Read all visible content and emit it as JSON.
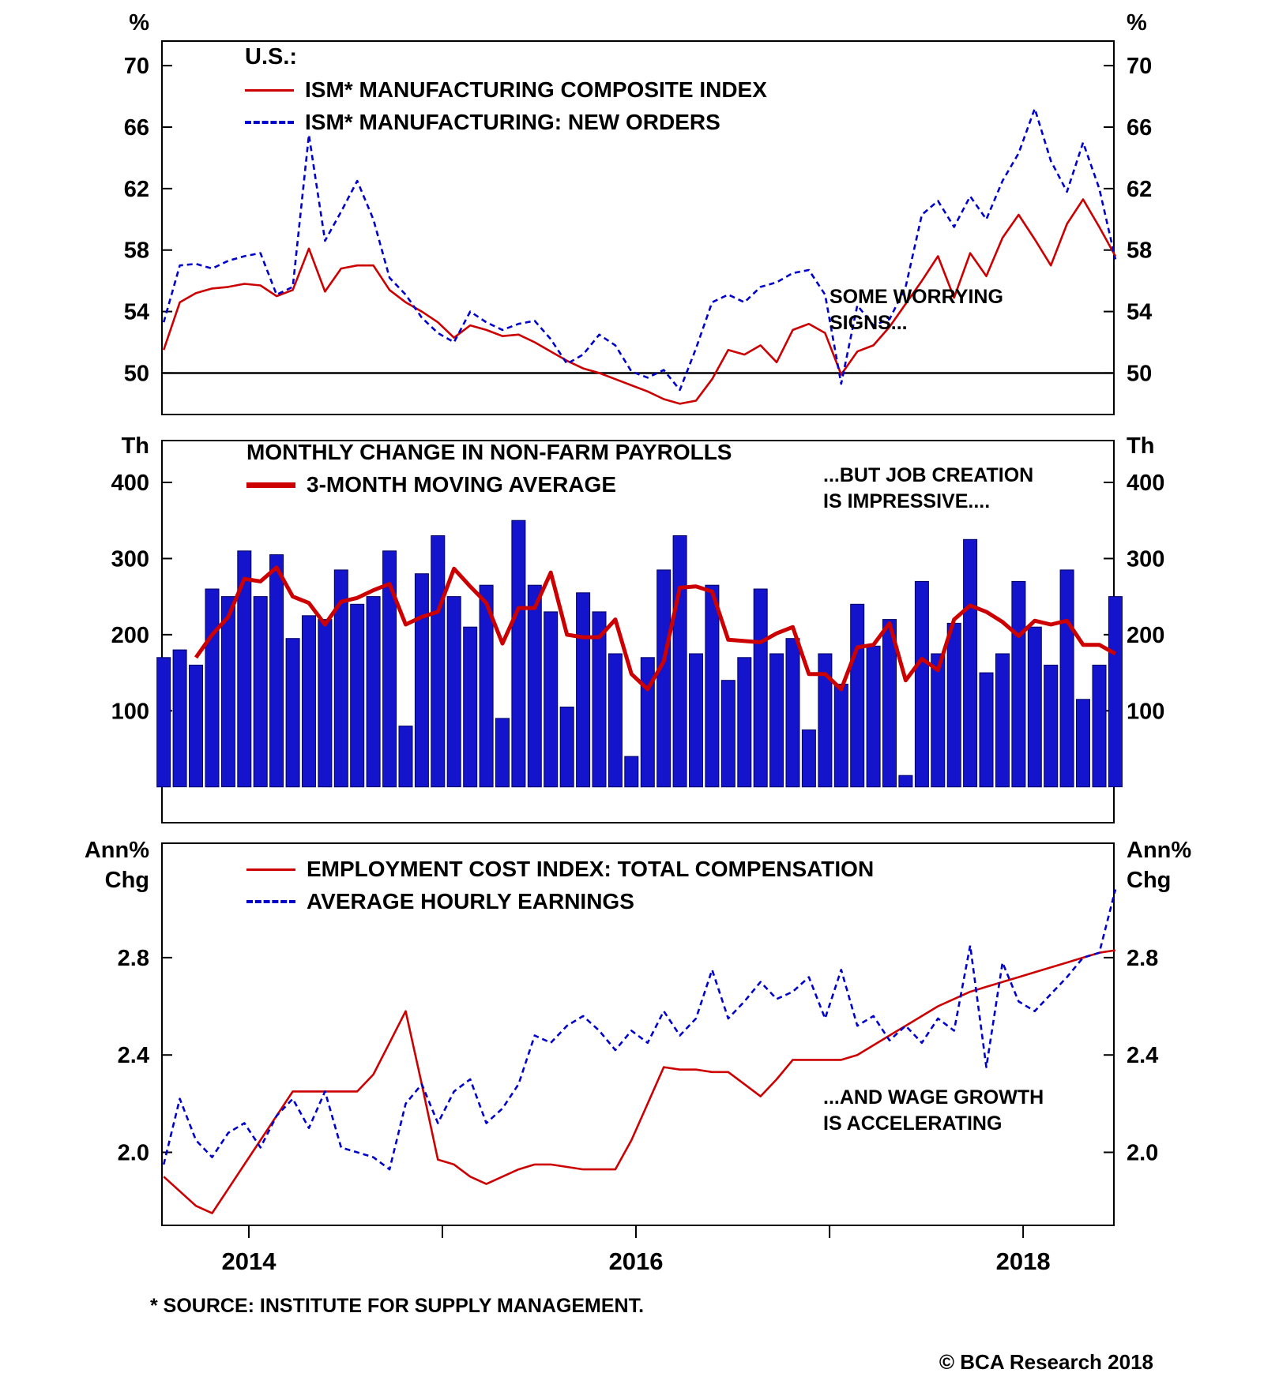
{
  "page": {
    "footnote": "* SOURCE: INSTITUTE FOR SUPPLY MANAGEMENT.",
    "copyright": "© BCA Research 2018",
    "background": "#ffffff"
  },
  "colors": {
    "red": "#cc0000",
    "blue": "#0000cc",
    "bar_fill": "#1414cc",
    "bar_edge": "#000060",
    "axis": "#000000"
  },
  "x_axis": {
    "start_year": 2013.56,
    "points_per_year": 12,
    "xlim": [
      2013.551,
      2018.469
    ],
    "tick_years": [
      2014,
      2015,
      2016,
      2017,
      2018
    ],
    "label_years": [
      "2014",
      "2016",
      "2018"
    ]
  },
  "chart_data": [
    {
      "type": "line",
      "title": "U.S.:",
      "unit": "%",
      "ylim": [
        47.3,
        71.6
      ],
      "yticks": [
        "70",
        "66",
        "62",
        "58",
        "54",
        "50"
      ],
      "hline": 50,
      "annotation": "SOME WORRYING\nSIGNS...",
      "legend_position": "top-left-inside",
      "grid": false,
      "series": [
        {
          "name": "ISM* MANUFACTURING COMPOSITE INDEX",
          "color": "red",
          "style": "solid",
          "values": [
            51.5,
            54.6,
            55.2,
            55.5,
            55.6,
            55.8,
            55.7,
            55.0,
            55.4,
            58.1,
            55.3,
            56.8,
            57.0,
            57.0,
            55.4,
            54.6,
            54.0,
            53.3,
            52.3,
            53.1,
            52.8,
            52.4,
            52.5,
            52.0,
            51.4,
            50.8,
            50.3,
            50.0,
            49.6,
            49.2,
            48.8,
            48.3,
            48.0,
            48.2,
            49.6,
            51.5,
            51.2,
            51.8,
            50.7,
            52.8,
            53.2,
            52.6,
            49.9,
            51.4,
            51.8,
            53.0,
            54.5,
            56.0,
            57.6,
            54.9,
            57.8,
            56.3,
            58.8,
            60.3,
            58.7,
            57.0,
            59.7,
            61.3,
            59.5,
            57.6
          ]
        },
        {
          "name": "ISM* MANUFACTURING: NEW ORDERS",
          "color": "blue",
          "style": "dashed",
          "values": [
            53.3,
            57.0,
            57.1,
            56.8,
            57.3,
            57.6,
            57.8,
            55.1,
            55.6,
            65.5,
            58.6,
            60.5,
            62.5,
            60.0,
            56.2,
            55.1,
            53.6,
            52.6,
            52.0,
            54.0,
            53.3,
            52.8,
            53.2,
            53.4,
            52.2,
            50.6,
            51.2,
            52.5,
            51.8,
            50.1,
            49.7,
            50.2,
            48.9,
            51.6,
            54.6,
            55.1,
            54.6,
            55.6,
            55.9,
            56.5,
            56.7,
            55.1,
            49.3,
            54.4,
            53.1,
            53.5,
            55.6,
            60.3,
            61.2,
            59.5,
            61.5,
            60.0,
            62.5,
            64.3,
            67.2,
            63.8,
            61.8,
            65.0,
            62.0,
            57.4
          ]
        }
      ]
    },
    {
      "type": "bar",
      "unit": "Th",
      "ylim": [
        -47,
        455
      ],
      "yticks": [
        "400",
        "300",
        "200",
        "100"
      ],
      "annotation": "...BUT JOB CREATION\nIS IMPRESSIVE....",
      "grid": false,
      "series": [
        {
          "name": "MONTHLY CHANGE IN NON-FARM PAYROLLS",
          "kind": "bar",
          "values": [
            170,
            180,
            160,
            260,
            250,
            310,
            250,
            305,
            195,
            225,
            220,
            285,
            240,
            250,
            310,
            80,
            280,
            330,
            250,
            210,
            265,
            90,
            350,
            265,
            230,
            105,
            255,
            230,
            175,
            40,
            170,
            285,
            330,
            175,
            265,
            140,
            170,
            260,
            175,
            195,
            75,
            175,
            135,
            240,
            185,
            220,
            15,
            270,
            175,
            215,
            325,
            150,
            175,
            270,
            210,
            160,
            285,
            115,
            160,
            250
          ]
        },
        {
          "name": "3-MONTH MOVING AVERAGE",
          "kind": "ma3",
          "color": "red"
        }
      ]
    },
    {
      "type": "line",
      "unit": "Ann%\nChg",
      "ylim": [
        1.7,
        3.27
      ],
      "yticks": [
        "2.8",
        "2.4",
        "2.0"
      ],
      "annotation": "...AND WAGE GROWTH\nIS ACCELERATING",
      "grid": false,
      "series": [
        {
          "name": "EMPLOYMENT COST INDEX: TOTAL COMPENSATION",
          "color": "red",
          "style": "solid",
          "values": [
            1.9,
            1.84,
            1.78,
            1.75,
            1.85,
            1.95,
            2.05,
            2.15,
            2.25,
            2.25,
            2.25,
            2.25,
            2.25,
            2.32,
            2.45,
            2.58,
            2.28,
            1.97,
            1.95,
            1.9,
            1.87,
            1.9,
            1.93,
            1.95,
            1.95,
            1.94,
            1.93,
            1.93,
            1.93,
            2.05,
            2.2,
            2.35,
            2.34,
            2.34,
            2.33,
            2.33,
            2.28,
            2.23,
            2.3,
            2.38,
            2.38,
            2.38,
            2.38,
            2.4,
            2.44,
            2.48,
            2.52,
            2.56,
            2.6,
            2.63,
            2.66,
            2.68,
            2.7,
            2.72,
            2.74,
            2.76,
            2.78,
            2.8,
            2.82,
            2.83
          ]
        },
        {
          "name": "AVERAGE HOURLY EARNINGS",
          "color": "blue",
          "style": "dashed",
          "values": [
            1.95,
            2.22,
            2.05,
            1.98,
            2.08,
            2.12,
            2.02,
            2.15,
            2.22,
            2.1,
            2.25,
            2.02,
            2.0,
            1.98,
            1.93,
            2.2,
            2.28,
            2.12,
            2.25,
            2.3,
            2.12,
            2.18,
            2.28,
            2.48,
            2.45,
            2.52,
            2.56,
            2.5,
            2.42,
            2.5,
            2.45,
            2.58,
            2.48,
            2.55,
            2.75,
            2.55,
            2.62,
            2.7,
            2.63,
            2.66,
            2.72,
            2.55,
            2.75,
            2.52,
            2.56,
            2.46,
            2.52,
            2.45,
            2.55,
            2.5,
            2.85,
            2.35,
            2.78,
            2.62,
            2.58,
            2.65,
            2.72,
            2.8,
            2.82,
            3.08
          ]
        }
      ]
    }
  ]
}
